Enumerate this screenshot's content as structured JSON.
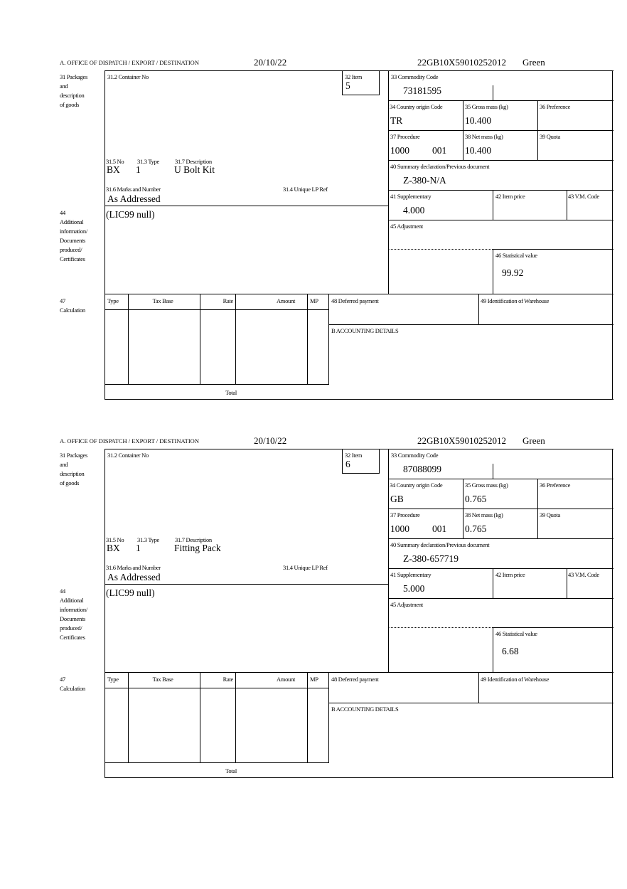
{
  "labels": {
    "office": "A.  OFFICE OF DISPATCH / EXPORT / DESTINATION",
    "packages": [
      "31 Packages",
      "and",
      "description",
      "of goods"
    ],
    "container_no": "31.2 Container No",
    "item": "32 Item",
    "commodity_code": "33 Commodity Code",
    "country_origin": "34 Country origin Code",
    "gross_mass": "35 Gross mass (kg)",
    "preference": "36 Preference",
    "procedure": "37 Procedure",
    "net_mass": "38 Net mass (kg)",
    "quota": "39 Quota",
    "summary_declaration": "40 Summary declaration/Previous document",
    "supplementary": "41 Supplementary",
    "item_price": "42 Item price",
    "vm_code": "43 V.M. Code",
    "adjustment": "45 Adjustment",
    "statistical_value": "46 Statistical value",
    "no": "31.5 No",
    "type": "31.3 Type",
    "description": "31.7 Description",
    "marks": "31.6 Marks and Number",
    "unique_lp_ref": "31.4 Unique LP Ref",
    "additional": [
      "44",
      "Additional",
      "information/",
      "Documents",
      "produced/",
      "Certificates"
    ],
    "calculation": [
      "47",
      "Calculation"
    ],
    "calc_type": "Type",
    "calc_tax_base": "Tax Base",
    "calc_rate": "Rate",
    "calc_amount": "Amount",
    "calc_mp": "MP",
    "deferred_payment": "48 Deferred payment",
    "warehouse": "49 Identification of Warehouse",
    "accounting": "B ACCOUNTING DETAILS",
    "total": "Total"
  },
  "forms": [
    {
      "date": "20/10/22",
      "reference": "22GB10X59010252012",
      "route": "Green",
      "item": "5",
      "commodity_code": "73181595",
      "country_origin": "TR",
      "gross_mass": "10.400",
      "procedure": "1000",
      "procedure_suffix": "001",
      "net_mass": "10.400",
      "summary_declaration": "Z-380-N/A",
      "supplementary": "4.000",
      "statistical_value": "99.92",
      "package_kind": "BX",
      "package_count": "1",
      "description": "U Bolt Kit",
      "marks": "As Addressed",
      "additional_info": "(LIC99 null)"
    },
    {
      "date": "20/10/22",
      "reference": "22GB10X59010252012",
      "route": "Green",
      "item": "6",
      "commodity_code": "87088099",
      "country_origin": "GB",
      "gross_mass": "0.765",
      "procedure": "1000",
      "procedure_suffix": "001",
      "net_mass": "0.765",
      "summary_declaration": "Z-380-657719",
      "supplementary": "5.000",
      "statistical_value": "6.68",
      "package_kind": "BX",
      "package_count": "1",
      "description": "Fitting Pack",
      "marks": "As Addressed",
      "additional_info": "(LIC99 null)"
    }
  ]
}
